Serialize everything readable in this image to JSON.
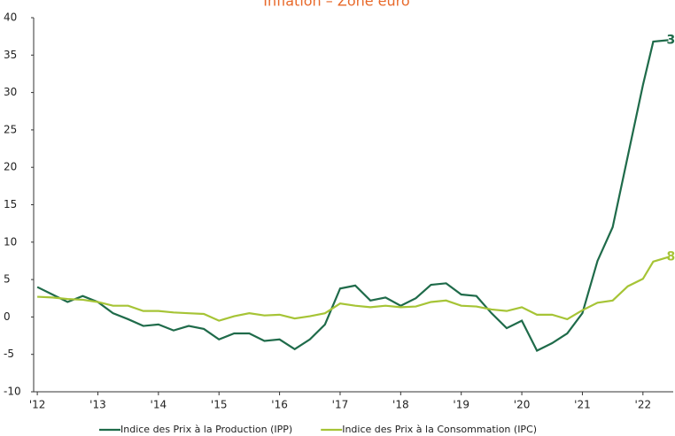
{
  "chart_data": {
    "type": "line",
    "title": "Inflation – Zone euro",
    "title_color": "#e8692a",
    "x": [
      2012,
      2012.25,
      2012.5,
      2012.75,
      2013,
      2013.25,
      2013.5,
      2013.75,
      2014,
      2014.25,
      2014.5,
      2014.75,
      2015,
      2015.25,
      2015.5,
      2015.75,
      2016,
      2016.25,
      2016.5,
      2016.75,
      2017,
      2017.25,
      2017.5,
      2017.75,
      2018,
      2018.25,
      2018.5,
      2018.75,
      2019,
      2019.25,
      2019.5,
      2019.75,
      2020,
      2020.25,
      2020.5,
      2020.75,
      2021,
      2021.25,
      2021.5,
      2021.75,
      2022,
      2022.17,
      2022.42
    ],
    "series": [
      {
        "name": "Indice des Prix à la Production (IPP)",
        "color": "#1f6b4a",
        "values": [
          4.0,
          3.0,
          2.0,
          2.8,
          2.0,
          0.5,
          -0.3,
          -1.2,
          -1.0,
          -1.8,
          -1.2,
          -1.6,
          -3.0,
          -2.2,
          -2.2,
          -3.2,
          -3.0,
          -4.3,
          -3.0,
          -1.0,
          3.8,
          4.2,
          2.2,
          2.6,
          1.5,
          2.5,
          4.3,
          4.5,
          3.0,
          2.8,
          0.5,
          -1.5,
          -0.5,
          -4.5,
          -3.5,
          -2.2,
          0.5,
          7.5,
          12.0,
          21.5,
          31.0,
          36.8,
          37
        ]
      },
      {
        "name": "Indice des Prix à la Consommation (IPC)",
        "color": "#a6c436",
        "values": [
          2.7,
          2.6,
          2.4,
          2.3,
          2.0,
          1.5,
          1.5,
          0.8,
          0.8,
          0.6,
          0.5,
          0.4,
          -0.5,
          0.1,
          0.5,
          0.2,
          0.3,
          -0.2,
          0.1,
          0.5,
          1.8,
          1.5,
          1.3,
          1.5,
          1.3,
          1.4,
          2.0,
          2.2,
          1.5,
          1.4,
          1.0,
          0.8,
          1.3,
          0.3,
          0.3,
          -0.3,
          0.9,
          1.9,
          2.2,
          4.1,
          5.1,
          7.4,
          8
        ]
      }
    ],
    "xlim": [
      2011.94,
      2022.5
    ],
    "xticks": [
      {
        "value": 2012,
        "label": "'12"
      },
      {
        "value": 2013,
        "label": "'13"
      },
      {
        "value": 2014,
        "label": "'14"
      },
      {
        "value": 2015,
        "label": "'15"
      },
      {
        "value": 2016,
        "label": "'16"
      },
      {
        "value": 2017,
        "label": "'17"
      },
      {
        "value": 2018,
        "label": "'18"
      },
      {
        "value": 2019,
        "label": "'19"
      },
      {
        "value": 2020,
        "label": "'20"
      },
      {
        "value": 2021,
        "label": "'21"
      },
      {
        "value": 2022,
        "label": "'22"
      }
    ],
    "ylim": [
      -10,
      40
    ],
    "yticks": [
      -10,
      -5,
      0,
      5,
      10,
      15,
      20,
      25,
      30,
      35,
      40
    ],
    "grid": false,
    "legend": "bottom"
  }
}
